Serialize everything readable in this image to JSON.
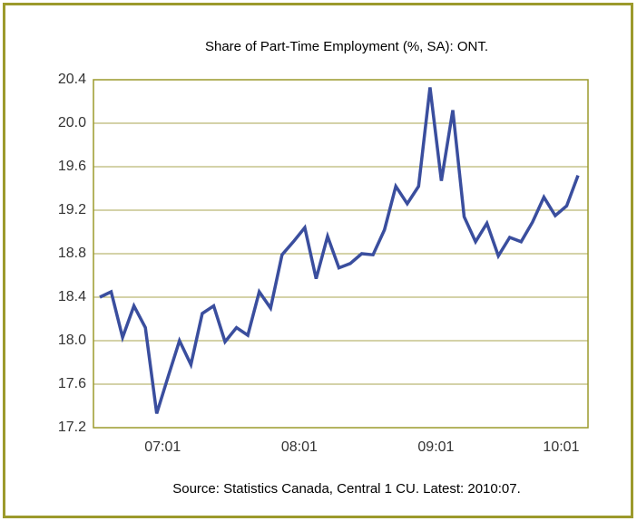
{
  "chart_data": {
    "type": "line",
    "title": "Share of Part-Time Employment (%, SA): ONT.",
    "source": "Source: Statistics Canada, Central 1 CU. Latest: 2010:07.",
    "categories": [
      null,
      null,
      null,
      null,
      null,
      null,
      "07:01",
      null,
      null,
      null,
      null,
      null,
      null,
      null,
      null,
      null,
      null,
      null,
      "08:01",
      null,
      null,
      null,
      null,
      null,
      null,
      null,
      null,
      null,
      null,
      null,
      "09:01",
      null,
      null,
      null,
      null,
      null,
      null,
      null,
      null,
      null,
      null,
      "10:01",
      null
    ],
    "series": [
      {
        "name": "Share of Part-Time Employment",
        "color": "#3a4e9e",
        "values": [
          18.4,
          18.45,
          18.03,
          18.32,
          18.12,
          17.33,
          17.67,
          18.0,
          17.78,
          18.25,
          18.32,
          17.99,
          18.12,
          18.05,
          18.45,
          18.3,
          18.79,
          18.91,
          19.04,
          18.57,
          18.96,
          18.67,
          18.71,
          18.8,
          18.79,
          19.02,
          19.42,
          19.26,
          19.42,
          20.33,
          19.47,
          20.12,
          19.14,
          18.91,
          19.08,
          18.78,
          18.95,
          18.91,
          19.09,
          19.32,
          19.15,
          19.24,
          19.52
        ]
      }
    ],
    "ylim": [
      17.2,
      20.4
    ],
    "yticks": [
      {
        "value": 17.2,
        "label": "17.2"
      },
      {
        "value": 17.6,
        "label": "17.6"
      },
      {
        "value": 18.0,
        "label": "18.0"
      },
      {
        "value": 18.4,
        "label": "18.4"
      },
      {
        "value": 18.8,
        "label": "18.8"
      },
      {
        "value": 19.2,
        "label": "19.2"
      },
      {
        "value": 19.6,
        "label": "19.6"
      },
      {
        "value": 20.0,
        "label": "20.0"
      },
      {
        "value": 20.4,
        "label": "20.4"
      }
    ],
    "grid": true
  }
}
